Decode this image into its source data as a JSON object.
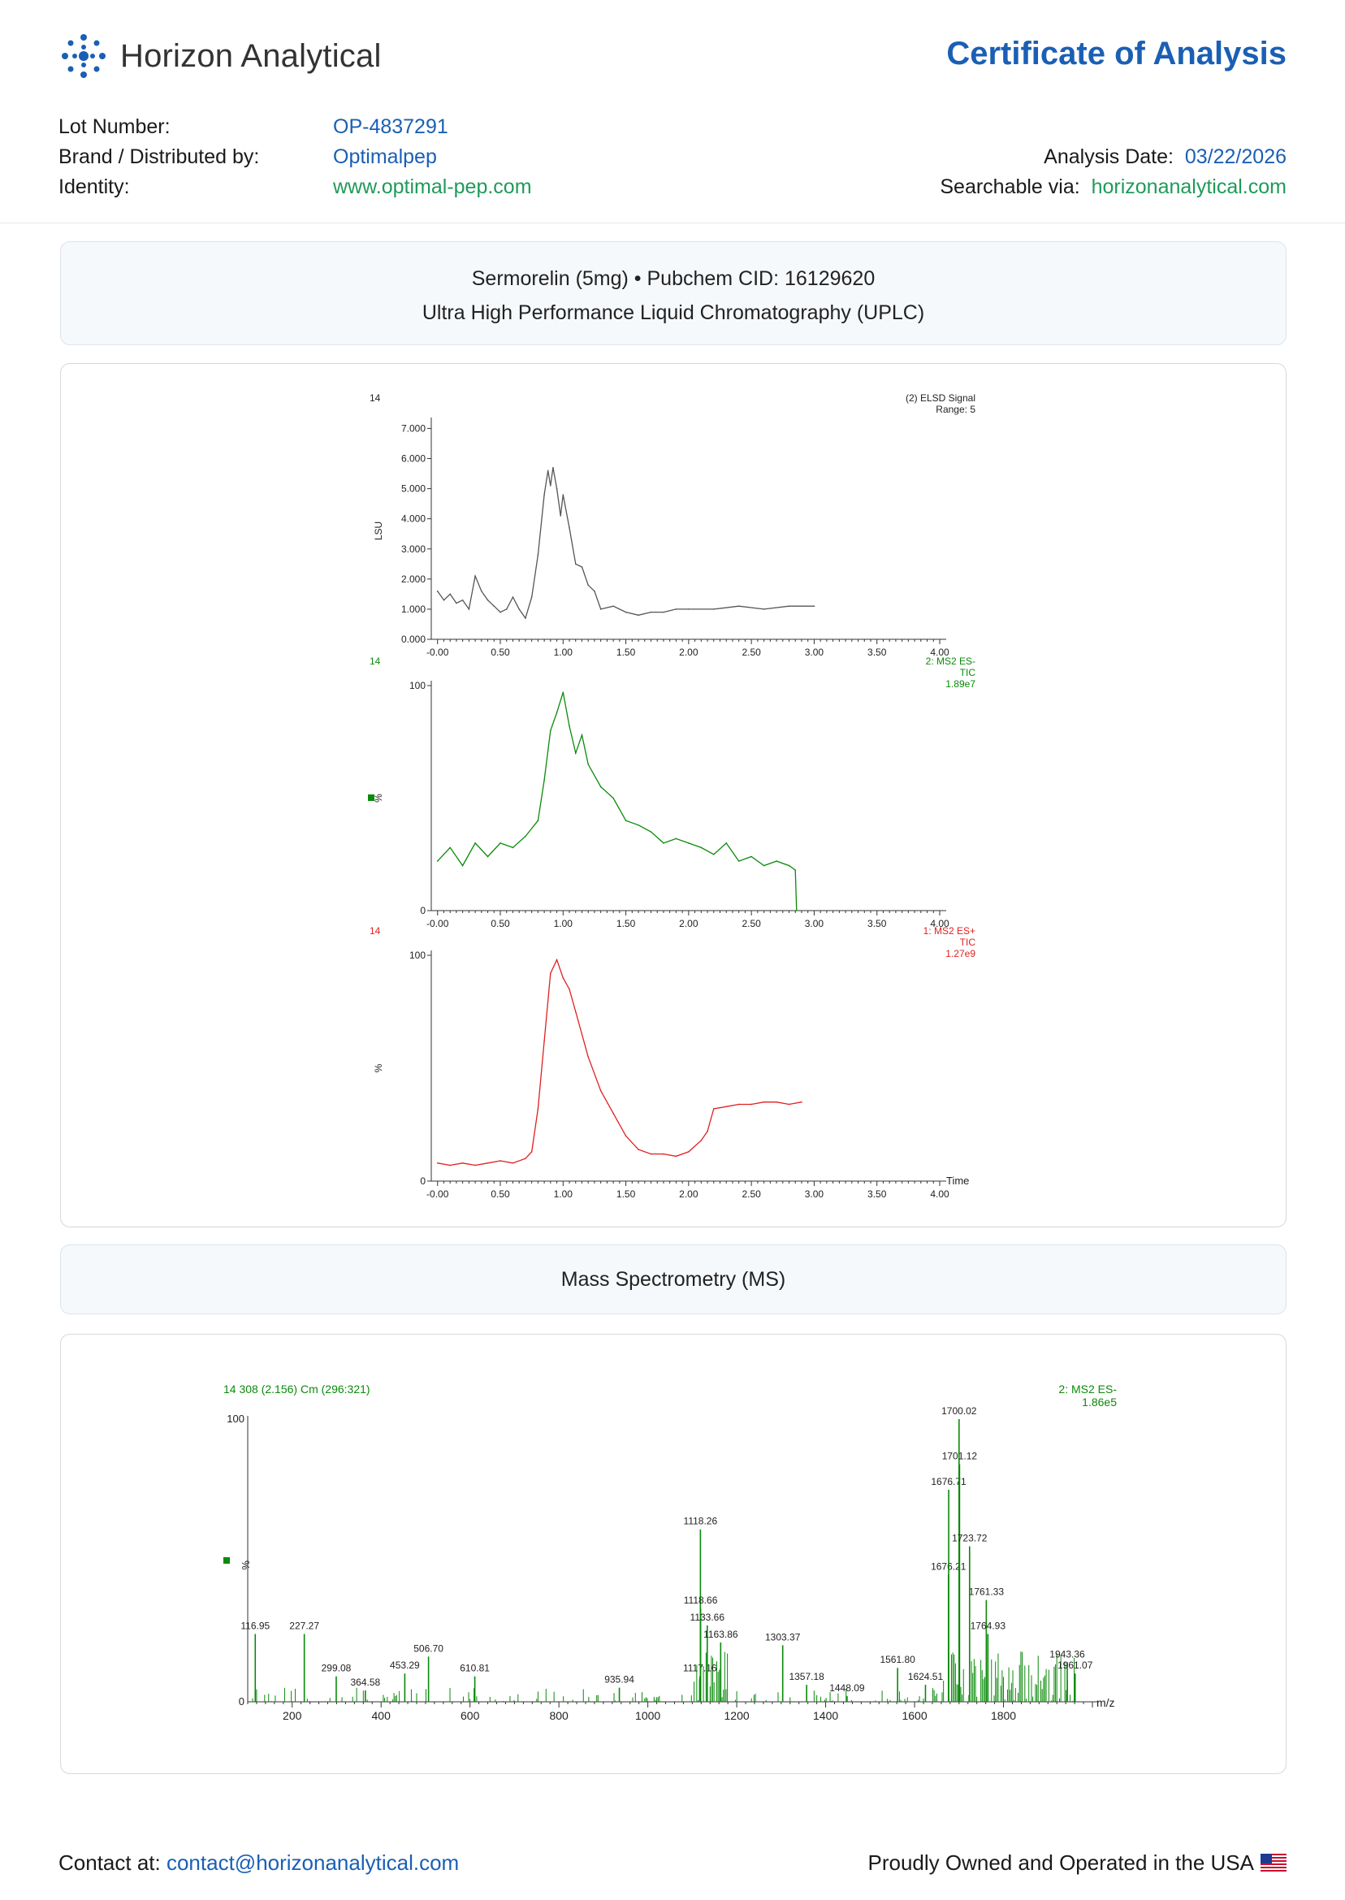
{
  "header": {
    "brand": "Horizon Analytical",
    "doc_title": "Certificate of Analysis",
    "lot_label": "Lot Number:",
    "lot_value": "OP-4837291",
    "brand_label": "Brand / Distributed by:",
    "brand_value": "Optimalpep",
    "identity_label": "Identity:",
    "identity_value": "www.optimal-pep.com",
    "date_label": "Analysis Date:",
    "date_value": "03/22/2026",
    "search_label": "Searchable via:",
    "search_value": "horizonanalytical.com"
  },
  "uplc_panel": {
    "line1": "Sermorelin (5mg) • Pubchem CID: 16129620",
    "line2": "Ultra High Performance Liquid Chromatography (UPLC)"
  },
  "ms_panel": {
    "title": "Mass Spectrometry (MS)"
  },
  "colors": {
    "brand_blue": "#1a5fb4",
    "link_green": "#1f9a5a",
    "elsd": "#555555",
    "ms_neg": "#0a8a0a",
    "ms_pos": "#e02020"
  },
  "chart_data": [
    {
      "type": "line",
      "id": "elsd",
      "trace_id": "14",
      "legend": [
        "(2) ELSD Signal",
        "Range: 5"
      ],
      "ylabel": "LSU",
      "xlim": [
        -0.05,
        4.0
      ],
      "ylim": [
        0,
        7.2
      ],
      "x_ticks": [
        "-0.00",
        "0.50",
        "1.00",
        "1.50",
        "2.00",
        "2.50",
        "3.00",
        "3.50",
        "4.00"
      ],
      "y_ticks": [
        "0.000",
        "1.000",
        "2.000",
        "3.000",
        "4.000",
        "5.000",
        "6.000",
        "7.000"
      ],
      "x": [
        0.0,
        0.05,
        0.1,
        0.15,
        0.2,
        0.25,
        0.3,
        0.35,
        0.4,
        0.45,
        0.5,
        0.55,
        0.6,
        0.65,
        0.7,
        0.75,
        0.8,
        0.85,
        0.88,
        0.9,
        0.92,
        0.95,
        0.98,
        1.0,
        1.05,
        1.1,
        1.15,
        1.2,
        1.25,
        1.3,
        1.4,
        1.5,
        1.6,
        1.7,
        1.8,
        1.9,
        2.0,
        2.2,
        2.4,
        2.6,
        2.8,
        3.0
      ],
      "y": [
        1.6,
        1.3,
        1.5,
        1.2,
        1.3,
        1.0,
        2.1,
        1.6,
        1.3,
        1.1,
        0.9,
        1.0,
        1.4,
        1.0,
        0.7,
        1.4,
        2.8,
        4.8,
        5.6,
        5.1,
        5.7,
        5.0,
        4.1,
        4.8,
        3.7,
        2.5,
        2.4,
        1.8,
        1.6,
        1.0,
        1.1,
        0.9,
        0.8,
        0.9,
        0.9,
        1.0,
        1.0,
        1.0,
        1.1,
        1.0,
        1.1,
        1.1
      ]
    },
    {
      "type": "line",
      "id": "tic_neg",
      "trace_id": "14",
      "legend": [
        "2: MS2 ES-",
        "TIC",
        "1.89e7"
      ],
      "ylabel": "%",
      "xlim": [
        -0.05,
        4.0
      ],
      "ylim": [
        0,
        100
      ],
      "x_ticks": [
        "-0.00",
        "0.50",
        "1.00",
        "1.50",
        "2.00",
        "2.50",
        "3.00",
        "3.50",
        "4.00"
      ],
      "y_ticks": [
        "0",
        "100"
      ],
      "x": [
        0.0,
        0.1,
        0.2,
        0.3,
        0.4,
        0.5,
        0.6,
        0.7,
        0.8,
        0.85,
        0.9,
        0.95,
        1.0,
        1.05,
        1.1,
        1.15,
        1.2,
        1.3,
        1.4,
        1.5,
        1.6,
        1.7,
        1.8,
        1.9,
        2.0,
        2.1,
        2.2,
        2.3,
        2.4,
        2.5,
        2.6,
        2.7,
        2.8,
        2.85,
        2.86
      ],
      "y": [
        22,
        28,
        20,
        30,
        24,
        30,
        28,
        33,
        40,
        58,
        80,
        88,
        97,
        82,
        70,
        78,
        65,
        55,
        50,
        40,
        38,
        35,
        30,
        32,
        30,
        28,
        25,
        30,
        22,
        24,
        20,
        22,
        20,
        18,
        0
      ]
    },
    {
      "type": "line",
      "id": "tic_pos",
      "trace_id": "14",
      "legend": [
        "1: MS2 ES+",
        "TIC",
        "1.27e9"
      ],
      "ylabel": "%",
      "xlabel": "Time",
      "xlim": [
        -0.05,
        4.0
      ],
      "ylim": [
        0,
        100
      ],
      "x_ticks": [
        "-0.00",
        "0.50",
        "1.00",
        "1.50",
        "2.00",
        "2.50",
        "3.00",
        "3.50",
        "4.00"
      ],
      "y_ticks": [
        "0",
        "100"
      ],
      "x": [
        0.0,
        0.1,
        0.2,
        0.3,
        0.4,
        0.5,
        0.6,
        0.7,
        0.75,
        0.8,
        0.85,
        0.9,
        0.95,
        1.0,
        1.05,
        1.1,
        1.2,
        1.3,
        1.4,
        1.5,
        1.6,
        1.7,
        1.8,
        1.9,
        2.0,
        2.1,
        2.15,
        2.2,
        2.3,
        2.4,
        2.5,
        2.6,
        2.7,
        2.8,
        2.9
      ],
      "y": [
        8,
        7,
        8,
        7,
        8,
        9,
        8,
        10,
        13,
        32,
        62,
        92,
        98,
        90,
        85,
        75,
        55,
        40,
        30,
        20,
        14,
        12,
        12,
        11,
        13,
        18,
        22,
        32,
        33,
        34,
        34,
        35,
        35,
        34,
        35
      ]
    },
    {
      "type": "bar",
      "id": "ms_spectrum",
      "header": "14 308 (2.156) Cm (296:321)",
      "legend": [
        "2: MS2 ES-",
        "1.86e5"
      ],
      "ylabel": "%",
      "xlabel": "m/z",
      "xlim": [
        100,
        2000
      ],
      "ylim": [
        0,
        100
      ],
      "x_ticks": [
        "200",
        "400",
        "600",
        "800",
        "1000",
        "1200",
        "1400",
        "1600",
        "1800"
      ],
      "y_ticks": [
        "0",
        "100"
      ],
      "peaks": [
        {
          "mz": 116.95,
          "i": 24,
          "label": "116.95"
        },
        {
          "mz": 227.27,
          "i": 24,
          "label": "227.27"
        },
        {
          "mz": 299.08,
          "i": 9,
          "label": "299.08"
        },
        {
          "mz": 364.58,
          "i": 4,
          "label": "364.58"
        },
        {
          "mz": 453.29,
          "i": 10,
          "label": "453.29"
        },
        {
          "mz": 506.7,
          "i": 16,
          "label": "506.70"
        },
        {
          "mz": 610.81,
          "i": 9,
          "label": "610.81"
        },
        {
          "mz": 935.94,
          "i": 5,
          "label": "935.94"
        },
        {
          "mz": 1117.16,
          "i": 9,
          "label": "1117.16"
        },
        {
          "mz": 1118.26,
          "i": 61,
          "label": "1118.26"
        },
        {
          "mz": 1118.66,
          "i": 33,
          "label": "1118.66"
        },
        {
          "mz": 1133.66,
          "i": 27,
          "label": "1133.66"
        },
        {
          "mz": 1163.86,
          "i": 21,
          "label": "1163.86"
        },
        {
          "mz": 1303.37,
          "i": 20,
          "label": "1303.37"
        },
        {
          "mz": 1357.18,
          "i": 6,
          "label": "1357.18"
        },
        {
          "mz": 1448.09,
          "i": 2,
          "label": "1448.09"
        },
        {
          "mz": 1561.8,
          "i": 12,
          "label": "1561.80"
        },
        {
          "mz": 1624.51,
          "i": 6,
          "label": "1624.51"
        },
        {
          "mz": 1676.21,
          "i": 45,
          "label": "1676.21"
        },
        {
          "mz": 1676.71,
          "i": 75,
          "label": "1676.71"
        },
        {
          "mz": 1700.02,
          "i": 100,
          "label": "1700.02"
        },
        {
          "mz": 1701.12,
          "i": 84,
          "label": "1701.12"
        },
        {
          "mz": 1723.72,
          "i": 55,
          "label": "1723.72"
        },
        {
          "mz": 1761.33,
          "i": 36,
          "label": "1761.33"
        },
        {
          "mz": 1764.93,
          "i": 24,
          "label": "1764.93"
        },
        {
          "mz": 1943.36,
          "i": 14,
          "label": "1943.36"
        },
        {
          "mz": 1961.07,
          "i": 10,
          "label": "1961.07"
        }
      ]
    }
  ],
  "footer": {
    "contact_label": "Contact at:",
    "contact_email": "contact@horizonanalytical.com",
    "usa": "Proudly Owned and Operated in the USA"
  }
}
